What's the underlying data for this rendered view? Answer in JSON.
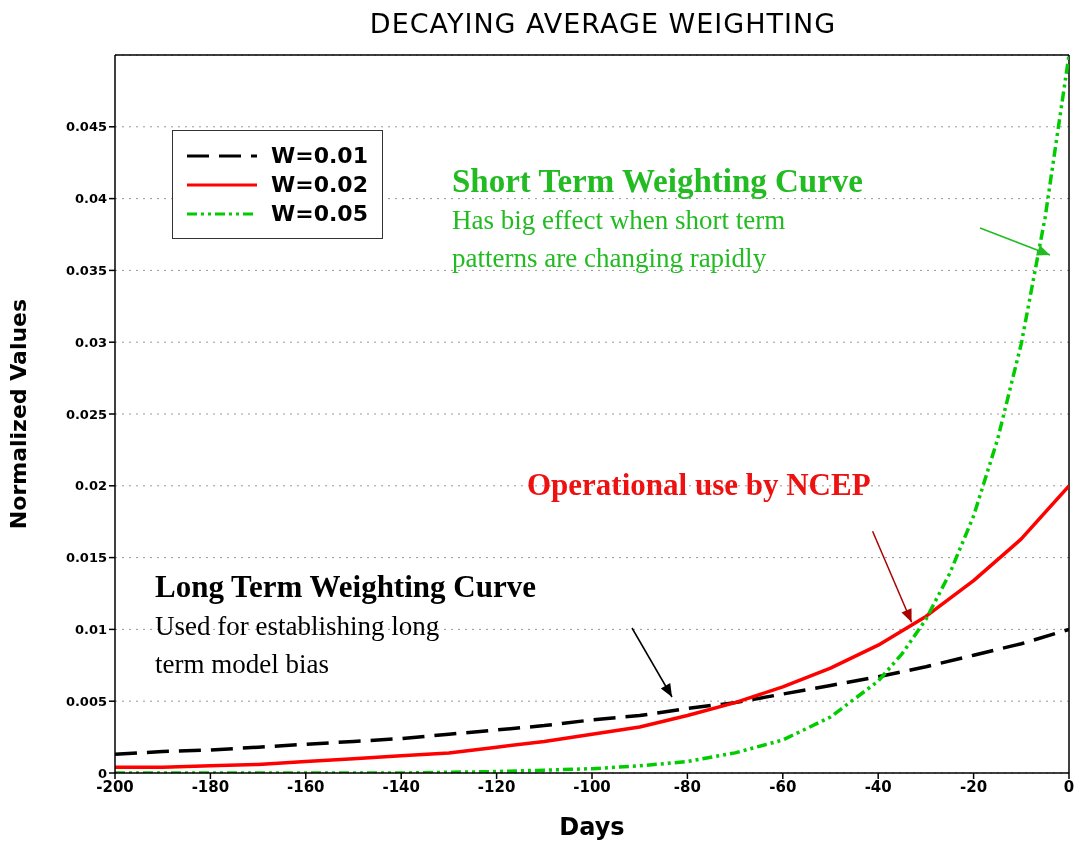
{
  "chart_data": {
    "type": "line",
    "title": "DECAYING AVERAGE WEIGHTING",
    "xlabel": "Days",
    "ylabel": "Normalized Values",
    "xlim": [
      -200,
      0
    ],
    "xticks": [
      -200,
      -180,
      -160,
      -140,
      -120,
      -100,
      -80,
      -60,
      -40,
      -20,
      0
    ],
    "ylim": [
      0,
      0.05
    ],
    "yticks": [
      0,
      0.005,
      0.01,
      0.015,
      0.02,
      0.025,
      0.03,
      0.035,
      0.04,
      0.045
    ],
    "grid": "y",
    "legend": "top left",
    "marker": "none",
    "series": [
      {
        "name": "W=0.01",
        "color": "#000000",
        "line_style": "dashed",
        "x": [
          -200,
          -190,
          -180,
          -170,
          -160,
          -150,
          -140,
          -130,
          -120,
          -110,
          -100,
          -90,
          -80,
          -70,
          -60,
          -50,
          -40,
          -30,
          -20,
          -10,
          0
        ],
        "values": [
          0.0013,
          0.0015,
          0.0016,
          0.0018,
          0.002,
          0.0022,
          0.0024,
          0.0027,
          0.003,
          0.0033,
          0.0037,
          0.004,
          0.0045,
          0.0049,
          0.0055,
          0.0061,
          0.0067,
          0.0074,
          0.0082,
          0.009,
          0.01
        ]
      },
      {
        "name": "W=0.02",
        "color": "#ff0000",
        "line_style": "solid",
        "x": [
          -200,
          -190,
          -180,
          -170,
          -160,
          -150,
          -140,
          -130,
          -120,
          -110,
          -100,
          -90,
          -80,
          -70,
          -60,
          -50,
          -40,
          -30,
          -20,
          -10,
          0
        ],
        "values": [
          0.0004,
          0.0004,
          0.0005,
          0.0006,
          0.0008,
          0.001,
          0.0012,
          0.0014,
          0.0018,
          0.0022,
          0.0027,
          0.0032,
          0.004,
          0.0049,
          0.006,
          0.0073,
          0.0089,
          0.0109,
          0.0134,
          0.0163,
          0.02
        ]
      },
      {
        "name": "W=0.05",
        "color": "#00cc00",
        "line_style": "dotted",
        "x": [
          -200,
          -180,
          -160,
          -140,
          -120,
          -110,
          -100,
          -90,
          -80,
          -70,
          -60,
          -50,
          -40,
          -35,
          -30,
          -25,
          -20,
          -15,
          -10,
          -5,
          0
        ],
        "values": [
          0,
          0,
          0,
          0,
          0.0001,
          0.0002,
          0.0003,
          0.0005,
          0.0008,
          0.0014,
          0.0023,
          0.0039,
          0.0064,
          0.0083,
          0.0107,
          0.0139,
          0.0179,
          0.0232,
          0.0299,
          0.0387,
          0.05
        ]
      }
    ],
    "annotations": [
      "Short Term Weighting Curve",
      "Has big effect when short term patterns are changing rapidly",
      {
        "text": "Operational use by NCEP",
        "x": -33,
        "y": 0.0105
      },
      "Long Term Weighting Curve",
      "Used for establishing long term model bias"
    ]
  }
}
